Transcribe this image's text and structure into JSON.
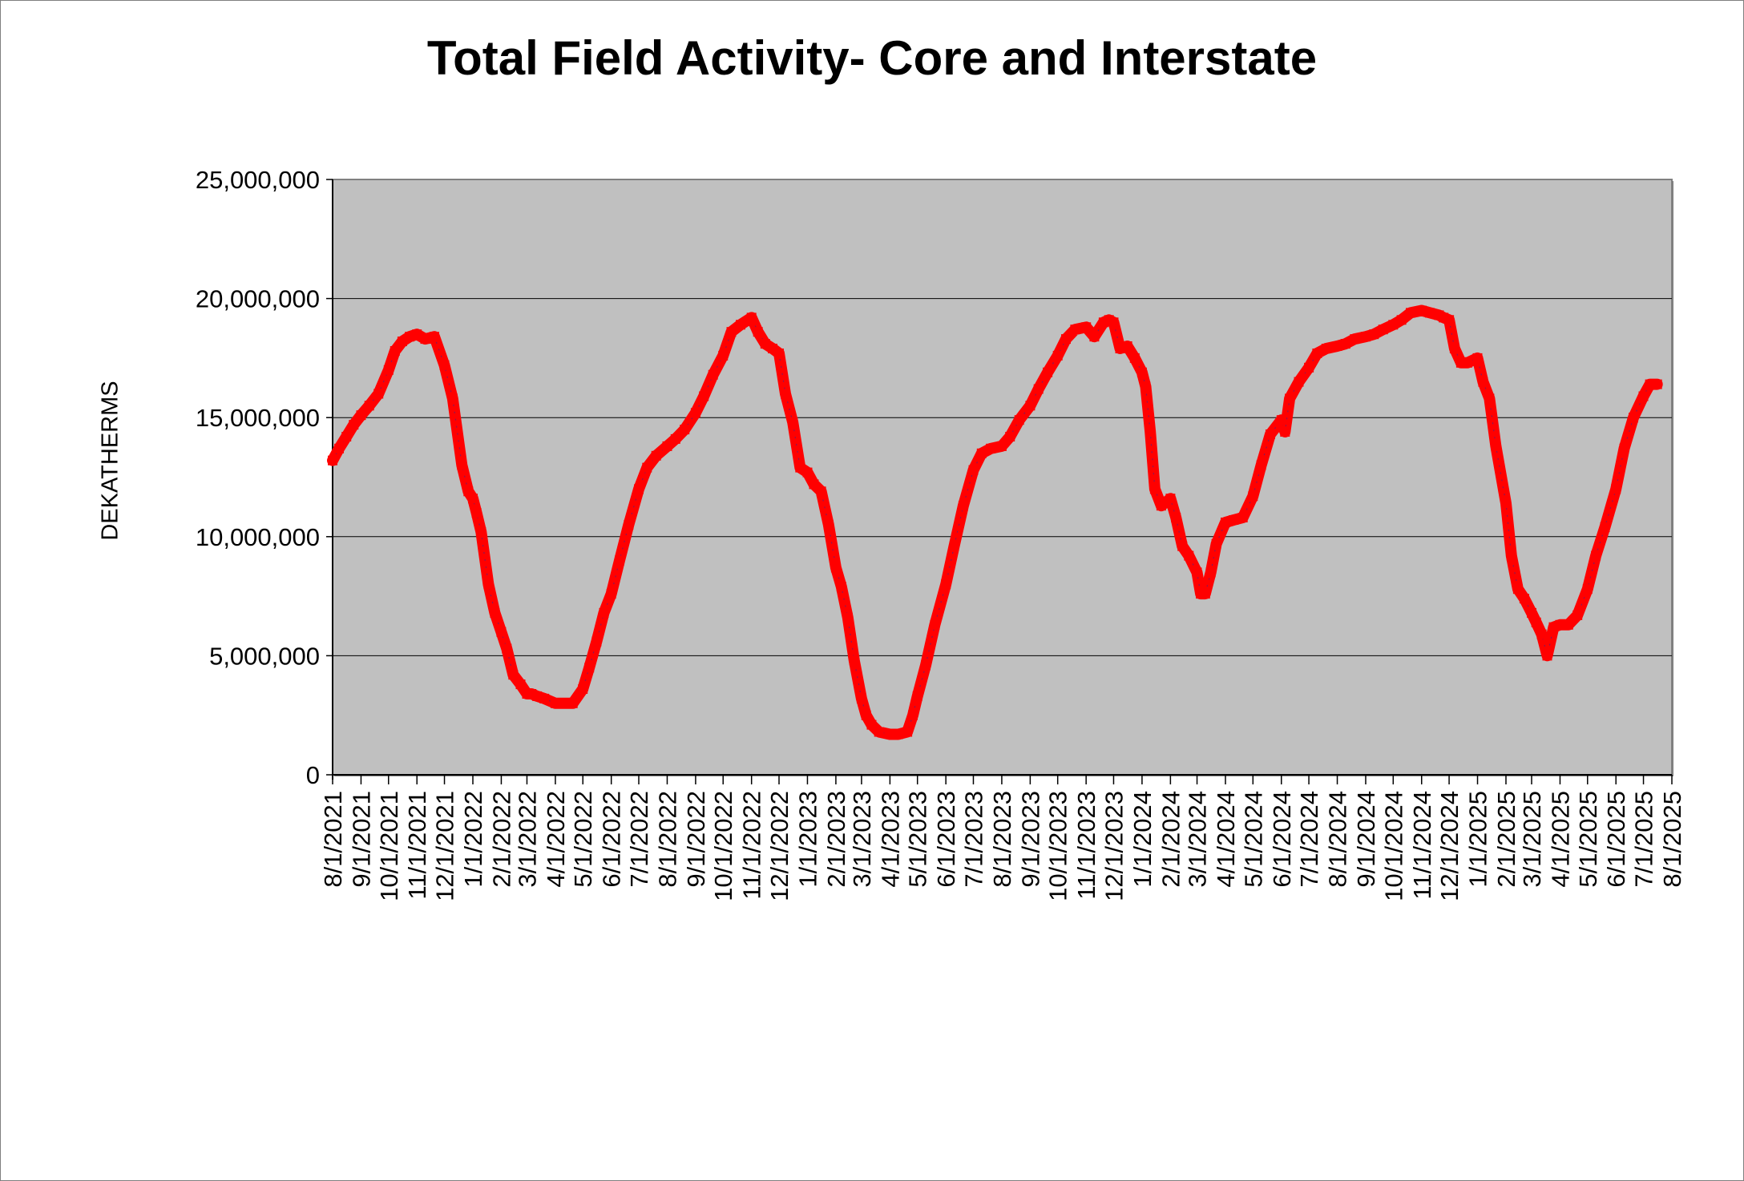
{
  "chart_data": {
    "type": "line",
    "title": "Total Field Activity- Core and Interstate",
    "xlabel": "",
    "ylabel": "DEKATHERMS",
    "ylim": [
      0,
      25000000
    ],
    "y_ticks": [
      "0",
      "5,000,000",
      "10,000,000",
      "15,000,000",
      "20,000,000",
      "25,000,000"
    ],
    "y_tick_values": [
      0,
      5000000,
      10000000,
      15000000,
      20000000,
      25000000
    ],
    "x_ticks": [
      "8/1/2021",
      "9/1/2021",
      "10/1/2021",
      "11/1/2021",
      "12/1/2021",
      "1/1/2022",
      "2/1/2022",
      "3/1/2022",
      "4/1/2022",
      "5/1/2022",
      "6/1/2022",
      "7/1/2022",
      "8/1/2022",
      "9/1/2022",
      "10/1/2022",
      "11/1/2022",
      "12/1/2022",
      "1/1/2023",
      "2/1/2023",
      "3/1/2023",
      "4/1/2023",
      "5/1/2023",
      "6/1/2023",
      "7/1/2023",
      "8/1/2023",
      "9/1/2023",
      "10/1/2023",
      "11/1/2023",
      "12/1/2023",
      "1/1/2024",
      "2/1/2024",
      "3/1/2024",
      "4/1/2024",
      "5/1/2024",
      "6/1/2024",
      "7/1/2024",
      "8/1/2024",
      "9/1/2024",
      "10/1/2024",
      "11/1/2024",
      "12/1/2024",
      "1/1/2025",
      "2/1/2025",
      "3/1/2025",
      "4/1/2025",
      "5/1/2025",
      "6/1/2025",
      "7/1/2025",
      "8/1/2025"
    ],
    "grid": true,
    "plot_background": "#c0c0c0",
    "series_color": "#ff0000",
    "series": [
      {
        "x": [
          "8/1/2021",
          "8/8/2021",
          "8/16/2021",
          "8/24/2021",
          "9/1/2021",
          "9/10/2021",
          "9/20/2021",
          "10/1/2021",
          "10/8/2021",
          "10/16/2021",
          "10/24/2021",
          "11/1/2021",
          "11/10/2021",
          "11/20/2021",
          "12/1/2021",
          "12/10/2021",
          "12/20/2021",
          "12/27/2021",
          "1/1/2022",
          "1/5/2022",
          "1/10/2022",
          "1/18/2022",
          "1/25/2022",
          "2/1/2022",
          "2/7/2022",
          "2/14/2022",
          "2/22/2022",
          "3/1/2022",
          "3/6/2022",
          "3/12/2022",
          "3/20/2022",
          "4/1/2022",
          "4/10/2022",
          "4/20/2022",
          "5/1/2022",
          "5/8/2022",
          "5/16/2022",
          "5/24/2022",
          "6/1/2022",
          "6/10/2022",
          "6/20/2022",
          "7/1/2022",
          "7/10/2022",
          "7/20/2022",
          "8/1/2022",
          "8/10/2022",
          "8/20/2022",
          "9/1/2022",
          "9/10/2022",
          "9/20/2022",
          "10/1/2022",
          "10/10/2022",
          "10/20/2022",
          "11/1/2022",
          "11/8/2022",
          "11/16/2022",
          "11/24/2022",
          "12/1/2022",
          "12/8/2022",
          "12/16/2022",
          "12/24/2022",
          "1/1/2023",
          "1/8/2023",
          "1/16/2023",
          "1/24/2023",
          "2/1/2023",
          "2/7/2023",
          "2/14/2023",
          "2/21/2023",
          "3/1/2023",
          "3/6/2023",
          "3/12/2023",
          "3/20/2023",
          "4/1/2023",
          "4/10/2023",
          "4/20/2023",
          "4/26/2023",
          "5/1/2023",
          "5/10/2023",
          "5/20/2023",
          "6/1/2023",
          "6/10/2023",
          "6/20/2023",
          "7/1/2023",
          "7/10/2023",
          "7/20/2023",
          "8/1/2023",
          "8/10/2023",
          "8/20/2023",
          "9/1/2023",
          "9/10/2023",
          "9/20/2023",
          "10/1/2023",
          "10/10/2023",
          "10/20/2023",
          "11/1/2023",
          "11/10/2023",
          "11/20/2023",
          "11/26/2023",
          "12/1/2023",
          "12/8/2023",
          "12/16/2023",
          "12/24/2023",
          "1/1/2024",
          "1/5/2024",
          "1/10/2024",
          "1/15/2024",
          "1/22/2024",
          "2/1/2024",
          "2/7/2024",
          "2/14/2024",
          "2/21/2024",
          "3/1/2024",
          "3/5/2024",
          "3/10/2024",
          "3/16/2024",
          "3/22/2024",
          "4/1/2024",
          "4/10/2024",
          "4/20/2024",
          "5/1/2024",
          "5/10/2024",
          "5/20/2024",
          "6/1/2024",
          "6/5/2024",
          "6/10/2024",
          "6/20/2024",
          "7/1/2024",
          "7/10/2024",
          "7/20/2024",
          "8/1/2024",
          "8/10/2024",
          "8/20/2024",
          "9/1/2024",
          "9/10/2024",
          "9/20/2024",
          "10/1/2024",
          "10/10/2024",
          "10/20/2024",
          "11/1/2024",
          "11/10/2024",
          "11/20/2024",
          "11/25/2024",
          "12/1/2024",
          "12/7/2024",
          "12/14/2024",
          "12/21/2024",
          "1/1/2025",
          "1/7/2025",
          "1/14/2025",
          "1/21/2025",
          "2/1/2025",
          "2/7/2025",
          "2/14/2025",
          "2/21/2025",
          "3/1/2025",
          "3/6/2025",
          "3/12/2025",
          "3/18/2025",
          "3/25/2025",
          "4/1/2025",
          "4/10/2025",
          "4/20/2025",
          "5/1/2025",
          "5/10/2025",
          "5/20/2025",
          "6/1/2025",
          "6/10/2025",
          "6/20/2025",
          "7/1/2025",
          "7/8/2025",
          "7/16/2025"
        ],
        "values": [
          13200000,
          13700000,
          14200000,
          14700000,
          15100000,
          15500000,
          16000000,
          17000000,
          17800000,
          18200000,
          18400000,
          18500000,
          18300000,
          18400000,
          17200000,
          15800000,
          13000000,
          11900000,
          11600000,
          11000000,
          10200000,
          8000000,
          6800000,
          6000000,
          5300000,
          4200000,
          3800000,
          3400000,
          3400000,
          3300000,
          3200000,
          3000000,
          3000000,
          3000000,
          3600000,
          4500000,
          5600000,
          6800000,
          7600000,
          9000000,
          10500000,
          12000000,
          12900000,
          13400000,
          13800000,
          14100000,
          14500000,
          15200000,
          15900000,
          16800000,
          17600000,
          18600000,
          18900000,
          19200000,
          18600000,
          18100000,
          17900000,
          17700000,
          16000000,
          14800000,
          12900000,
          12700000,
          12200000,
          11900000,
          10500000,
          8700000,
          7900000,
          6600000,
          4800000,
          3200000,
          2500000,
          2100000,
          1800000,
          1700000,
          1700000,
          1800000,
          2500000,
          3300000,
          4600000,
          6300000,
          8000000,
          9600000,
          11300000,
          12800000,
          13500000,
          13700000,
          13800000,
          14200000,
          14900000,
          15500000,
          16200000,
          16900000,
          17600000,
          18300000,
          18700000,
          18800000,
          18400000,
          19000000,
          19100000,
          19000000,
          17900000,
          18000000,
          17500000,
          16900000,
          16300000,
          14400000,
          12000000,
          11300000,
          11600000,
          10800000,
          9600000,
          9200000,
          8500000,
          7600000,
          7600000,
          8500000,
          9700000,
          10600000,
          10700000,
          10800000,
          11700000,
          13000000,
          14300000,
          14900000,
          14400000,
          15800000,
          16500000,
          17100000,
          17700000,
          17900000,
          18000000,
          18100000,
          18300000,
          18400000,
          18500000,
          18700000,
          18900000,
          19100000,
          19400000,
          19500000,
          19400000,
          19300000,
          19200000,
          19100000,
          17900000,
          17300000,
          17300000,
          17500000,
          16500000,
          15800000,
          13800000,
          11400000,
          9200000,
          7800000,
          7400000,
          6800000,
          6400000,
          5900000,
          5000000,
          6200000,
          6300000,
          6300000,
          6700000,
          7800000,
          9200000,
          10400000,
          12000000,
          13700000,
          15000000,
          15900000,
          16400000,
          16400000
        ]
      }
    ]
  }
}
